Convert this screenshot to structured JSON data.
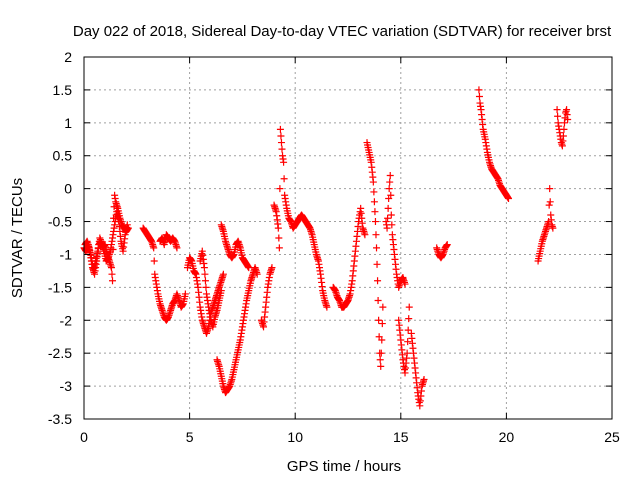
{
  "chart_data": {
    "type": "scatter",
    "title": "Day 022 of 2018, Sidereal Day-to-day VTEC variation (SDTVAR) for receiver brst",
    "xlabel": "GPS time / hours",
    "ylabel": "SDTVAR / TECUs",
    "xlim": [
      0,
      25
    ],
    "ylim": [
      -3.5,
      2
    ],
    "xticks": [
      0,
      5,
      10,
      15,
      20,
      25
    ],
    "xtick_labels": [
      "0",
      "5",
      "10",
      "15",
      "20",
      "25"
    ],
    "yticks": [
      -3.5,
      -3,
      -2.5,
      -2,
      -1.5,
      -1,
      -0.5,
      0,
      0.5,
      1,
      1.5,
      2
    ],
    "ytick_labels": [
      "-3.5",
      "-3",
      "-2.5",
      "-2",
      "-1.5",
      "-1",
      "-0.5",
      "0",
      "0.5",
      "1",
      "1.5",
      "2"
    ],
    "grid": true,
    "marker": "plus",
    "series": [
      {
        "name": "SDTVAR",
        "color": "#ff0000",
        "segments": [
          [
            [
              0.0,
              -0.9
            ],
            [
              0.1,
              -0.95
            ],
            [
              0.2,
              -0.85
            ],
            [
              0.3,
              -1.0
            ],
            [
              0.4,
              -1.2
            ],
            [
              0.5,
              -1.3
            ],
            [
              0.6,
              -1.1
            ],
            [
              0.7,
              -0.85
            ],
            [
              0.8,
              -0.8
            ],
            [
              0.9,
              -0.9
            ],
            [
              1.0,
              -0.85
            ],
            [
              1.1,
              -1.0
            ],
            [
              1.2,
              -1.1
            ],
            [
              1.3,
              -1.2
            ],
            [
              1.35,
              -1.4
            ],
            [
              1.4,
              -0.45
            ],
            [
              1.45,
              -0.1
            ],
            [
              1.5,
              -0.2
            ],
            [
              1.6,
              -0.3
            ],
            [
              1.7,
              -0.45
            ],
            [
              1.8,
              -0.55
            ],
            [
              1.9,
              -0.6
            ],
            [
              2.0,
              -0.65
            ],
            [
              2.1,
              -0.6
            ]
          ],
          [
            [
              0.05,
              -0.85
            ],
            [
              0.15,
              -0.8
            ],
            [
              0.25,
              -0.9
            ],
            [
              0.35,
              -1.05
            ],
            [
              0.45,
              -1.25
            ],
            [
              0.55,
              -1.1
            ],
            [
              0.65,
              -0.95
            ],
            [
              0.75,
              -0.75
            ],
            [
              0.85,
              -0.85
            ],
            [
              0.95,
              -0.95
            ],
            [
              1.05,
              -1.1
            ],
            [
              1.15,
              -1.05
            ],
            [
              1.25,
              -0.95
            ],
            [
              1.55,
              -0.35
            ],
            [
              1.65,
              -0.5
            ],
            [
              1.75,
              -0.8
            ],
            [
              1.85,
              -0.95
            ],
            [
              1.95,
              -0.7
            ],
            [
              2.05,
              -0.55
            ]
          ],
          [
            [
              2.8,
              -0.6
            ],
            [
              2.9,
              -0.65
            ],
            [
              3.0,
              -0.7
            ],
            [
              3.1,
              -0.75
            ],
            [
              3.2,
              -0.8
            ],
            [
              3.3,
              -0.9
            ],
            [
              3.35,
              -1.3
            ],
            [
              3.4,
              -1.4
            ],
            [
              3.5,
              -1.6
            ],
            [
              3.6,
              -1.75
            ],
            [
              3.7,
              -1.85
            ],
            [
              3.8,
              -1.95
            ],
            [
              3.9,
              -2.0
            ],
            [
              4.0,
              -1.95
            ],
            [
              4.1,
              -1.85
            ],
            [
              4.2,
              -1.75
            ],
            [
              4.3,
              -1.7
            ],
            [
              4.4,
              -1.6
            ],
            [
              4.5,
              -1.7
            ],
            [
              4.6,
              -1.8
            ],
            [
              4.7,
              -1.75
            ],
            [
              4.8,
              -1.6
            ]
          ],
          [
            [
              3.6,
              -0.8
            ],
            [
              3.7,
              -0.75
            ],
            [
              3.8,
              -0.85
            ],
            [
              3.9,
              -0.7
            ],
            [
              4.0,
              -0.75
            ],
            [
              4.1,
              -0.8
            ],
            [
              4.2,
              -0.75
            ],
            [
              4.3,
              -0.8
            ],
            [
              4.4,
              -0.9
            ]
          ],
          [
            [
              4.9,
              -1.2
            ],
            [
              5.0,
              -1.05
            ],
            [
              5.1,
              -1.1
            ],
            [
              5.2,
              -1.25
            ],
            [
              5.3,
              -1.3
            ],
            [
              5.4,
              -1.5
            ],
            [
              5.5,
              -1.8
            ],
            [
              5.6,
              -2.0
            ],
            [
              5.7,
              -2.1
            ],
            [
              5.8,
              -2.2
            ],
            [
              5.9,
              -2.1
            ],
            [
              6.0,
              -1.9
            ],
            [
              6.1,
              -1.8
            ],
            [
              6.2,
              -1.7
            ],
            [
              6.3,
              -1.6
            ],
            [
              6.4,
              -1.5
            ],
            [
              6.5,
              -1.4
            ],
            [
              6.6,
              -1.3
            ]
          ],
          [
            [
              5.5,
              -1.1
            ],
            [
              5.6,
              -0.95
            ],
            [
              5.7,
              -1.2
            ],
            [
              5.8,
              -1.6
            ],
            [
              5.9,
              -1.8
            ],
            [
              6.0,
              -2.0
            ],
            [
              6.1,
              -2.1
            ],
            [
              6.2,
              -1.95
            ],
            [
              6.3,
              -1.85
            ],
            [
              6.4,
              -1.7
            ],
            [
              6.5,
              -1.55
            ]
          ],
          [
            [
              6.3,
              -2.6
            ],
            [
              6.4,
              -2.7
            ],
            [
              6.5,
              -2.85
            ],
            [
              6.6,
              -3.0
            ],
            [
              6.7,
              -3.1
            ],
            [
              6.8,
              -3.05
            ],
            [
              6.9,
              -3.0
            ],
            [
              7.0,
              -2.9
            ],
            [
              7.1,
              -2.75
            ],
            [
              7.2,
              -2.6
            ],
            [
              7.3,
              -2.45
            ],
            [
              7.4,
              -2.3
            ],
            [
              7.5,
              -2.1
            ],
            [
              7.6,
              -1.9
            ],
            [
              7.7,
              -1.7
            ],
            [
              7.8,
              -1.55
            ],
            [
              7.9,
              -1.4
            ],
            [
              8.0,
              -1.3
            ],
            [
              8.1,
              -1.2
            ],
            [
              8.2,
              -1.3
            ]
          ],
          [
            [
              6.5,
              -0.55
            ],
            [
              6.6,
              -0.65
            ],
            [
              6.7,
              -0.8
            ],
            [
              6.8,
              -0.9
            ],
            [
              6.9,
              -1.0
            ],
            [
              7.0,
              -1.05
            ],
            [
              7.1,
              -1.0
            ],
            [
              7.2,
              -0.85
            ],
            [
              7.3,
              -0.8
            ],
            [
              7.4,
              -0.9
            ],
            [
              7.5,
              -1.05
            ],
            [
              7.6,
              -1.1
            ],
            [
              7.7,
              -1.15
            ],
            [
              7.8,
              -1.2
            ]
          ],
          [
            [
              8.4,
              -2.0
            ],
            [
              8.5,
              -2.1
            ],
            [
              8.6,
              -1.8
            ],
            [
              8.7,
              -1.5
            ],
            [
              8.8,
              -1.3
            ],
            [
              8.9,
              -1.2
            ]
          ],
          [
            [
              9.0,
              -0.25
            ],
            [
              9.1,
              -0.35
            ],
            [
              9.2,
              -0.6
            ],
            [
              9.25,
              -0.9
            ],
            [
              9.3,
              0.9
            ],
            [
              9.35,
              0.7
            ],
            [
              9.4,
              0.5
            ],
            [
              9.45,
              0.4
            ],
            [
              9.5,
              -0.1
            ],
            [
              9.6,
              -0.3
            ],
            [
              9.7,
              -0.45
            ],
            [
              9.8,
              -0.5
            ],
            [
              9.9,
              -0.6
            ],
            [
              10.0,
              -0.55
            ],
            [
              10.1,
              -0.5
            ],
            [
              10.2,
              -0.45
            ],
            [
              10.3,
              -0.4
            ],
            [
              10.4,
              -0.45
            ],
            [
              10.5,
              -0.5
            ],
            [
              10.6,
              -0.55
            ],
            [
              10.7,
              -0.6
            ],
            [
              10.8,
              -0.7
            ],
            [
              10.9,
              -0.85
            ],
            [
              11.0,
              -1.0
            ],
            [
              11.1,
              -1.1
            ],
            [
              11.2,
              -1.3
            ],
            [
              11.3,
              -1.55
            ],
            [
              11.4,
              -1.7
            ],
            [
              11.5,
              -1.8
            ]
          ],
          [
            [
              11.8,
              -1.5
            ],
            [
              11.9,
              -1.55
            ],
            [
              12.0,
              -1.65
            ],
            [
              12.1,
              -1.7
            ],
            [
              12.2,
              -1.8
            ],
            [
              12.3,
              -1.8
            ],
            [
              12.4,
              -1.75
            ],
            [
              12.5,
              -1.7
            ],
            [
              12.6,
              -1.6
            ],
            [
              12.7,
              -1.4
            ],
            [
              12.8,
              -1.1
            ],
            [
              12.9,
              -0.8
            ],
            [
              13.0,
              -0.5
            ],
            [
              13.1,
              -0.3
            ],
            [
              13.2,
              -0.6
            ],
            [
              13.3,
              -0.7
            ]
          ],
          [
            [
              13.4,
              0.7
            ],
            [
              13.5,
              0.55
            ],
            [
              13.6,
              0.4
            ],
            [
              13.7,
              0.1
            ],
            [
              13.75,
              -0.2
            ],
            [
              13.8,
              -0.5
            ],
            [
              13.85,
              -0.9
            ],
            [
              13.9,
              -1.4
            ],
            [
              13.95,
              -2.0
            ],
            [
              14.0,
              -2.5
            ],
            [
              14.05,
              -2.7
            ],
            [
              14.1,
              -2.3
            ],
            [
              14.15,
              -1.8
            ]
          ],
          [
            [
              14.3,
              -0.5
            ],
            [
              14.35,
              -0.6
            ],
            [
              14.4,
              -0.3
            ],
            [
              14.45,
              0.0
            ],
            [
              14.5,
              0.2
            ],
            [
              14.55,
              -0.4
            ],
            [
              14.6,
              -0.7
            ],
            [
              14.7,
              -1.0
            ],
            [
              14.8,
              -1.3
            ],
            [
              14.9,
              -1.5
            ],
            [
              15.0,
              -1.4
            ],
            [
              15.1,
              -1.35
            ],
            [
              15.2,
              -1.45
            ]
          ],
          [
            [
              14.9,
              -2.0
            ],
            [
              15.0,
              -2.3
            ],
            [
              15.1,
              -2.6
            ],
            [
              15.2,
              -2.8
            ],
            [
              15.3,
              -2.5
            ],
            [
              15.4,
              -1.8
            ]
          ],
          [
            [
              15.5,
              -2.2
            ],
            [
              15.6,
              -2.5
            ],
            [
              15.7,
              -2.8
            ],
            [
              15.8,
              -3.1
            ],
            [
              15.9,
              -3.3
            ],
            [
              16.0,
              -3.0
            ],
            [
              16.1,
              -2.9
            ]
          ],
          [
            [
              16.7,
              -0.9
            ],
            [
              16.8,
              -1.0
            ],
            [
              16.9,
              -1.05
            ],
            [
              17.0,
              -1.0
            ],
            [
              17.1,
              -0.9
            ],
            [
              17.2,
              -0.85
            ]
          ],
          [
            [
              18.7,
              1.5
            ],
            [
              18.75,
              1.3
            ],
            [
              18.8,
              1.2
            ],
            [
              18.9,
              0.9
            ],
            [
              19.0,
              0.75
            ],
            [
              19.1,
              0.55
            ],
            [
              19.2,
              0.4
            ],
            [
              19.3,
              0.3
            ],
            [
              19.4,
              0.25
            ],
            [
              19.5,
              0.2
            ],
            [
              19.6,
              0.15
            ],
            [
              19.7,
              0.05
            ],
            [
              19.8,
              0.0
            ],
            [
              19.9,
              -0.05
            ],
            [
              20.0,
              -0.1
            ],
            [
              20.1,
              -0.15
            ]
          ],
          [
            [
              21.5,
              -1.1
            ],
            [
              21.6,
              -0.95
            ],
            [
              21.7,
              -0.8
            ],
            [
              21.8,
              -0.7
            ],
            [
              21.9,
              -0.6
            ],
            [
              22.0,
              -0.5
            ],
            [
              22.05,
              0.0
            ],
            [
              22.1,
              -0.4
            ],
            [
              22.15,
              -0.55
            ],
            [
              22.2,
              -0.6
            ]
          ],
          [
            [
              22.4,
              1.2
            ],
            [
              22.45,
              1.0
            ],
            [
              22.5,
              0.9
            ],
            [
              22.55,
              0.8
            ],
            [
              22.6,
              0.7
            ],
            [
              22.65,
              0.65
            ],
            [
              22.7,
              0.8
            ],
            [
              22.75,
              1.0
            ],
            [
              22.8,
              1.15
            ],
            [
              22.85,
              1.2
            ],
            [
              22.9,
              1.05
            ]
          ]
        ]
      }
    ]
  }
}
